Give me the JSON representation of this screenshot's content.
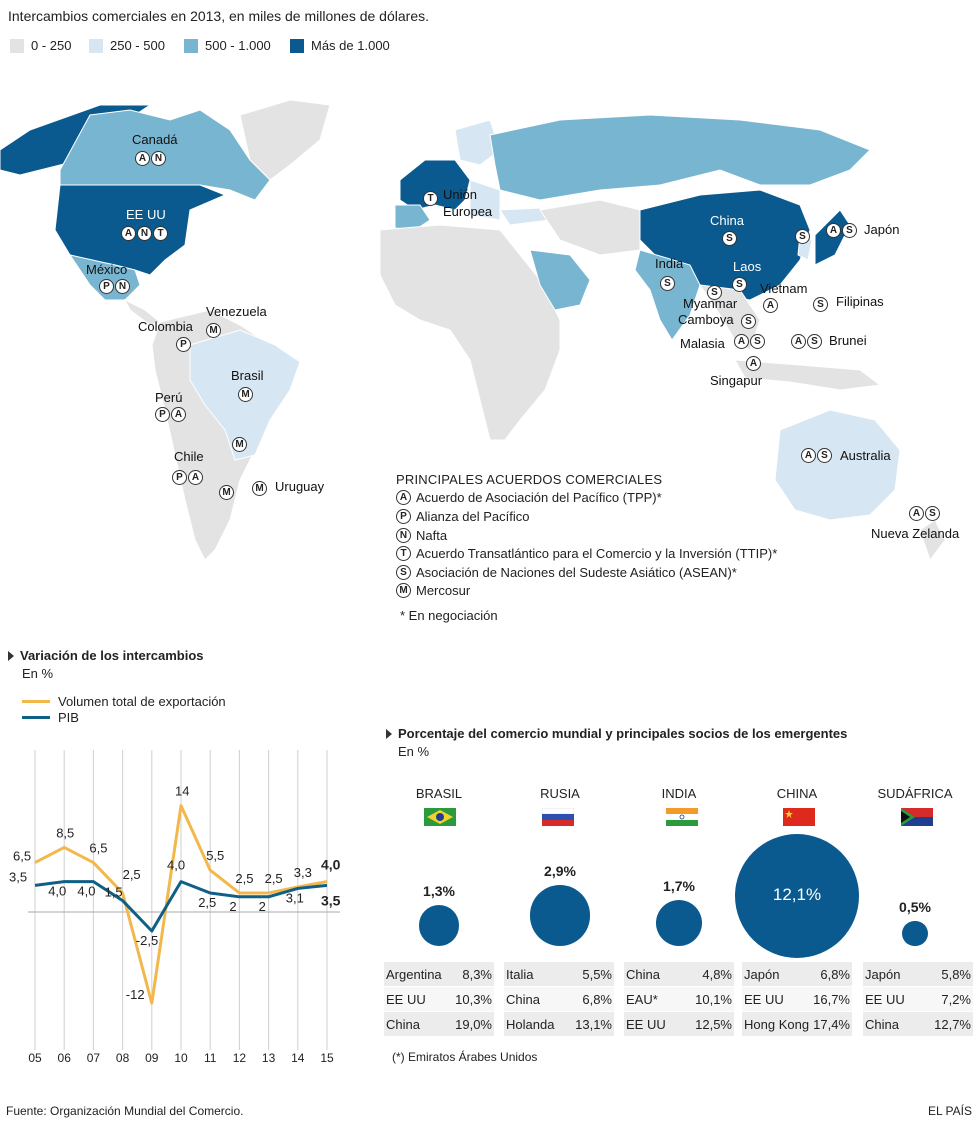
{
  "title": "Intercambios comerciales en 2013, en miles de millones de dólares.",
  "legend": [
    {
      "label": "0 - 250",
      "color": "#e3e3e3"
    },
    {
      "label": "250 - 500",
      "color": "#d6e6f2"
    },
    {
      "label": "500 - 1.000",
      "color": "#78b5d1"
    },
    {
      "label": "Más de 1.000",
      "color": "#0b5a8f"
    }
  ],
  "map": {
    "labels": {
      "canada": "Canadá",
      "eeuu": "EE UU",
      "mexico": "México",
      "venezuela": "Venezuela",
      "colombia": "Colombia",
      "brasil": "Brasil",
      "peru": "Perú",
      "chile": "Chile",
      "uruguay": "Uruguay",
      "ue1": "Unión",
      "ue2": "Europea",
      "china": "China",
      "india": "India",
      "laos": "Laos",
      "vietnam": "Vietnam",
      "myanmar": "Myanmar",
      "camboya": "Camboya",
      "malasia": "Malasia",
      "singapur": "Singapur",
      "japon": "Japón",
      "filipinas": "Filipinas",
      "brunei": "Brunei",
      "australia": "Australia",
      "nz": "Nueva Zelanda"
    },
    "badges": {
      "canada": "A N",
      "eeuu": "A N T",
      "mexico": "P N",
      "venezuela": "M",
      "colombia": "P",
      "brasil": "M",
      "peru": "P A",
      "chile": "P A",
      "uruguay": "M",
      "arg1": "M",
      "arg2": "M",
      "ue": "T",
      "china": "S",
      "india": "S",
      "laos": "S",
      "vietnam": "A",
      "myanmar": "S",
      "camboya": "S",
      "malasia": "A S",
      "singapur": "A",
      "japon": "A S",
      "korea": "S",
      "filipinas": "S",
      "brunei": "A S",
      "australia": "A S",
      "nz": "A S"
    }
  },
  "agreements": {
    "title": "PRINCIPALES ACUERDOS COMERCIALES",
    "items": [
      {
        "badge": "A",
        "label": "Acuerdo de Asociación del Pacífico (TPP)*"
      },
      {
        "badge": "P",
        "label": "Alianza del Pacífico"
      },
      {
        "badge": "N",
        "label": "Nafta"
      },
      {
        "badge": "T",
        "label": "Acuerdo Transatlántico para el Comercio y la Inversión (TTIP)*"
      },
      {
        "badge": "S",
        "label": "Asociación de Naciones del Sudeste Asiático (ASEAN)*"
      },
      {
        "badge": "M",
        "label": "Mercosur"
      }
    ],
    "note": "* En negociación"
  },
  "line_section": {
    "title": "Variación de los intercambios",
    "unit": "En %",
    "legend_export": "Volumen total de exportación",
    "legend_gdp": "PIB",
    "colors": {
      "export": "#f2b84b",
      "gdp": "#0f5f86"
    }
  },
  "chart_data": [
    {
      "type": "line",
      "title": "Variación de los intercambios",
      "ylabel": "En %",
      "x": [
        "05",
        "06",
        "07",
        "08",
        "09",
        "10",
        "11",
        "12",
        "13",
        "14",
        "15"
      ],
      "series": [
        {
          "name": "Volumen total de exportación",
          "values": [
            6.5,
            8.5,
            6.5,
            2.5,
            -12,
            14,
            5.5,
            2.5,
            2.5,
            3.3,
            4.0
          ],
          "labels": [
            "6,5",
            "8,5",
            "6,5",
            "2,5",
            "-12",
            "14",
            "5,5",
            "2,5",
            "2,5",
            "3,3",
            "4,0"
          ]
        },
        {
          "name": "PIB",
          "values": [
            3.5,
            4.0,
            4.0,
            1.5,
            -2.5,
            4.0,
            2.5,
            2,
            2,
            3.1,
            3.5
          ],
          "labels": [
            "3,5",
            "4,0",
            "4,0",
            "1,5",
            "-2,5",
            "4,0",
            "2,5",
            "2",
            "2",
            "3,1",
            "3,5"
          ]
        }
      ]
    },
    {
      "type": "table",
      "title": "Porcentaje del comercio mundial y principales socios de los emergentes",
      "unit": "En %",
      "countries": [
        {
          "name": "BRASIL",
          "share": 1.3,
          "share_label": "1,3%",
          "partners": [
            [
              "Argentina",
              "8,3%"
            ],
            [
              "EE UU",
              "10,3%"
            ],
            [
              "China",
              "19,0%"
            ]
          ]
        },
        {
          "name": "RUSIA",
          "share": 2.9,
          "share_label": "2,9%",
          "partners": [
            [
              "Italia",
              "5,5%"
            ],
            [
              "China",
              "6,8%"
            ],
            [
              "Holanda",
              "13,1%"
            ]
          ]
        },
        {
          "name": "INDIA",
          "share": 1.7,
          "share_label": "1,7%",
          "partners": [
            [
              "China",
              "4,8%"
            ],
            [
              "EAU*",
              "10,1%"
            ],
            [
              "EE UU",
              "12,5%"
            ]
          ]
        },
        {
          "name": "CHINA",
          "share": 12.1,
          "share_label": "12,1%",
          "partners": [
            [
              "Japón",
              "6,8%"
            ],
            [
              "EE UU",
              "16,7%"
            ],
            [
              "Hong Kong",
              "17,4%"
            ]
          ]
        },
        {
          "name": "SUDÁFRICA",
          "share": 0.5,
          "share_label": "0,5%",
          "partners": [
            [
              "Japón",
              "5,8%"
            ],
            [
              "EE UU",
              "7,2%"
            ],
            [
              "China",
              "12,7%"
            ]
          ]
        }
      ]
    }
  ],
  "emerging": {
    "title": "Porcentaje del comercio mundial y principales socios de los emergentes",
    "unit": "En %",
    "footnote": "(*) Emiratos Árabes Unidos",
    "bubble_color": "#0b5a8f"
  },
  "source": "Fuente: Organización Mundial del Comercio.",
  "brand": "EL PAÍS"
}
